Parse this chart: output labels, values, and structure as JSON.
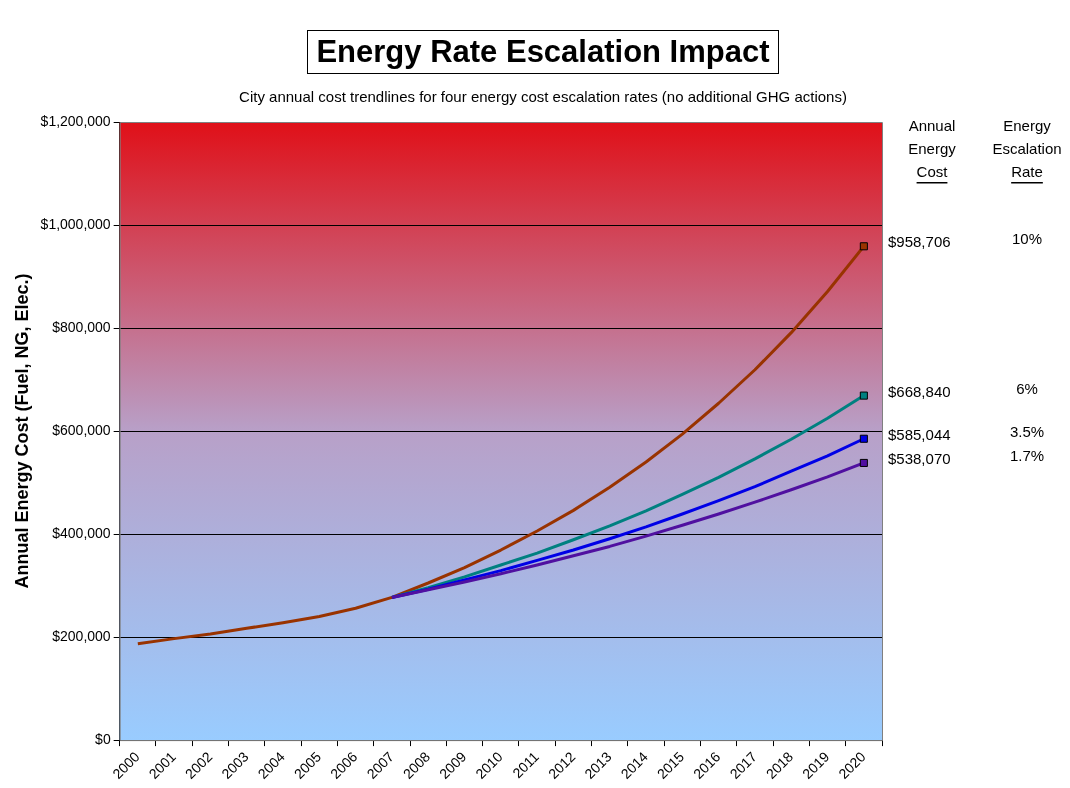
{
  "chart_data": {
    "type": "line",
    "title": "Energy Rate Escalation Impact",
    "subtitle": "City annual cost trendlines for four energy cost escalation rates (no additional GHG actions)",
    "ylabel": "Annual Energy Cost (Fuel, NG, Elec.)",
    "categories": [
      "2000",
      "2001",
      "2002",
      "2003",
      "2004",
      "2005",
      "2006",
      "2007",
      "2008",
      "2009",
      "2010",
      "2011",
      "2012",
      "2013",
      "2014",
      "2015",
      "2016",
      "2017",
      "2018",
      "2019",
      "2020"
    ],
    "ylim": [
      0,
      1200000
    ],
    "yticks": [
      {
        "value": 0,
        "label": "$0"
      },
      {
        "value": 200000,
        "label": "$200,000"
      },
      {
        "value": 400000,
        "label": "$400,000"
      },
      {
        "value": 600000,
        "label": "$600,000"
      },
      {
        "value": 800000,
        "label": "$800,000"
      },
      {
        "value": 1000000,
        "label": "$1,000,000"
      },
      {
        "value": 1200000,
        "label": "$1,200,000"
      }
    ],
    "grid": "y",
    "legend": false,
    "annotations": [
      "Annual Energy Cost",
      "Energy Escalation Rate"
    ],
    "series": [
      {
        "name": "1.7%",
        "color": "#5010a0",
        "values": [
          null,
          null,
          null,
          null,
          null,
          null,
          null,
          277000,
          292000,
          307000,
          323000,
          340000,
          358000,
          376000,
          396000,
          417000,
          439000,
          462000,
          486000,
          511000,
          538070
        ],
        "value_labels": [
          null,
          null,
          null,
          null,
          null,
          null,
          null,
          null,
          null,
          null,
          null,
          null,
          null,
          null,
          null,
          null,
          null,
          null,
          null,
          null,
          "$538,070"
        ]
      },
      {
        "name": "3.5%",
        "color": "#0000e6",
        "values": [
          null,
          null,
          null,
          null,
          null,
          null,
          null,
          277000,
          293000,
          311000,
          329000,
          349000,
          369000,
          391000,
          414000,
          439000,
          465000,
          492000,
          522000,
          552000,
          585044
        ],
        "value_labels": [
          null,
          null,
          null,
          null,
          null,
          null,
          null,
          null,
          null,
          null,
          null,
          null,
          null,
          null,
          null,
          null,
          null,
          null,
          null,
          null,
          "$585,044"
        ]
      },
      {
        "name": "6%",
        "color": "#008080",
        "values": [
          null,
          null,
          null,
          null,
          null,
          null,
          null,
          277000,
          296000,
          317000,
          340000,
          363000,
          389000,
          416000,
          445000,
          477000,
          510000,
          546000,
          584000,
          625000,
          668840
        ],
        "value_labels": [
          null,
          null,
          null,
          null,
          null,
          null,
          null,
          null,
          null,
          null,
          null,
          null,
          null,
          null,
          null,
          null,
          null,
          null,
          null,
          null,
          "$668,840"
        ]
      },
      {
        "name": "10%",
        "color": "#993300",
        "values": [
          187000,
          197000,
          206000,
          217000,
          228000,
          240000,
          256000,
          277000,
          305000,
          335000,
          369000,
          406000,
          446000,
          491000,
          540000,
          594000,
          654000,
          719000,
          791000,
          871000,
          958706
        ],
        "value_labels": [
          null,
          null,
          null,
          null,
          null,
          null,
          null,
          null,
          null,
          null,
          null,
          null,
          null,
          null,
          null,
          null,
          null,
          null,
          null,
          null,
          "$958,706"
        ]
      }
    ]
  }
}
